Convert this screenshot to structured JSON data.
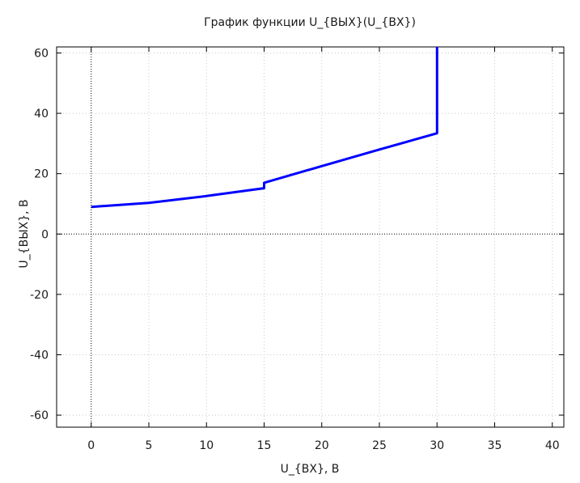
{
  "chart_data": {
    "type": "line",
    "title": "График функции U_{ВЫХ}(U_{ВХ})",
    "xlabel": "U_{ВХ}, В",
    "ylabel": "U_{ВЫХ}, В",
    "xlim": [
      -3,
      41
    ],
    "ylim": [
      -64,
      62
    ],
    "xticks": [
      0,
      5,
      10,
      15,
      20,
      25,
      30,
      35,
      40
    ],
    "yticks": [
      -60,
      -40,
      -20,
      0,
      20,
      40,
      60
    ],
    "grid": true,
    "zero_axes": true,
    "legend": "none",
    "series": [
      {
        "color": "#0000ff",
        "points": [
          [
            0,
            9
          ],
          [
            5,
            10.3
          ],
          [
            10,
            12.6
          ],
          [
            15,
            15.2
          ],
          [
            15,
            17
          ],
          [
            20,
            22.5
          ],
          [
            25,
            28
          ],
          [
            30,
            33.4
          ],
          [
            30,
            62
          ]
        ]
      }
    ]
  }
}
